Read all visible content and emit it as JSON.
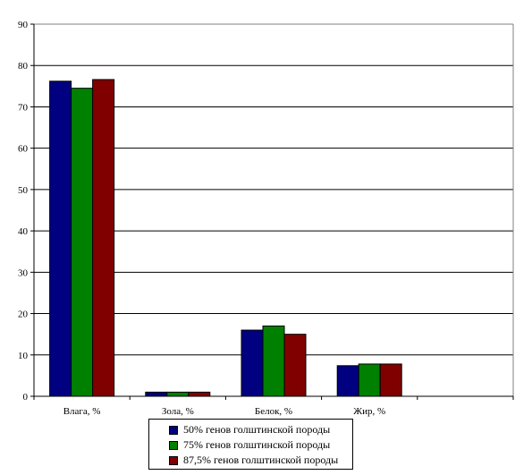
{
  "chart_data": {
    "type": "bar",
    "title": "",
    "xlabel": "",
    "ylabel": "",
    "categories": [
      "Влага, %",
      "Зола, %",
      "Белок, %",
      "Жир, %",
      ""
    ],
    "series": [
      {
        "name": "50% генов голштинской породы",
        "color": "#000080",
        "values": [
          76.2,
          1.0,
          16.0,
          7.4,
          null
        ]
      },
      {
        "name": "75% генов голштинской породы",
        "color": "#008000",
        "values": [
          74.5,
          1.0,
          17.0,
          7.8,
          null
        ]
      },
      {
        "name": "87,5% генов голштинской породы",
        "color": "#800000",
        "values": [
          76.6,
          1.0,
          15.0,
          7.8,
          null
        ]
      }
    ],
    "ylim": [
      0,
      90
    ],
    "yticks": [
      0,
      10,
      20,
      30,
      40,
      50,
      60,
      70,
      80,
      90
    ],
    "grid": true,
    "legend_position": "bottom"
  }
}
